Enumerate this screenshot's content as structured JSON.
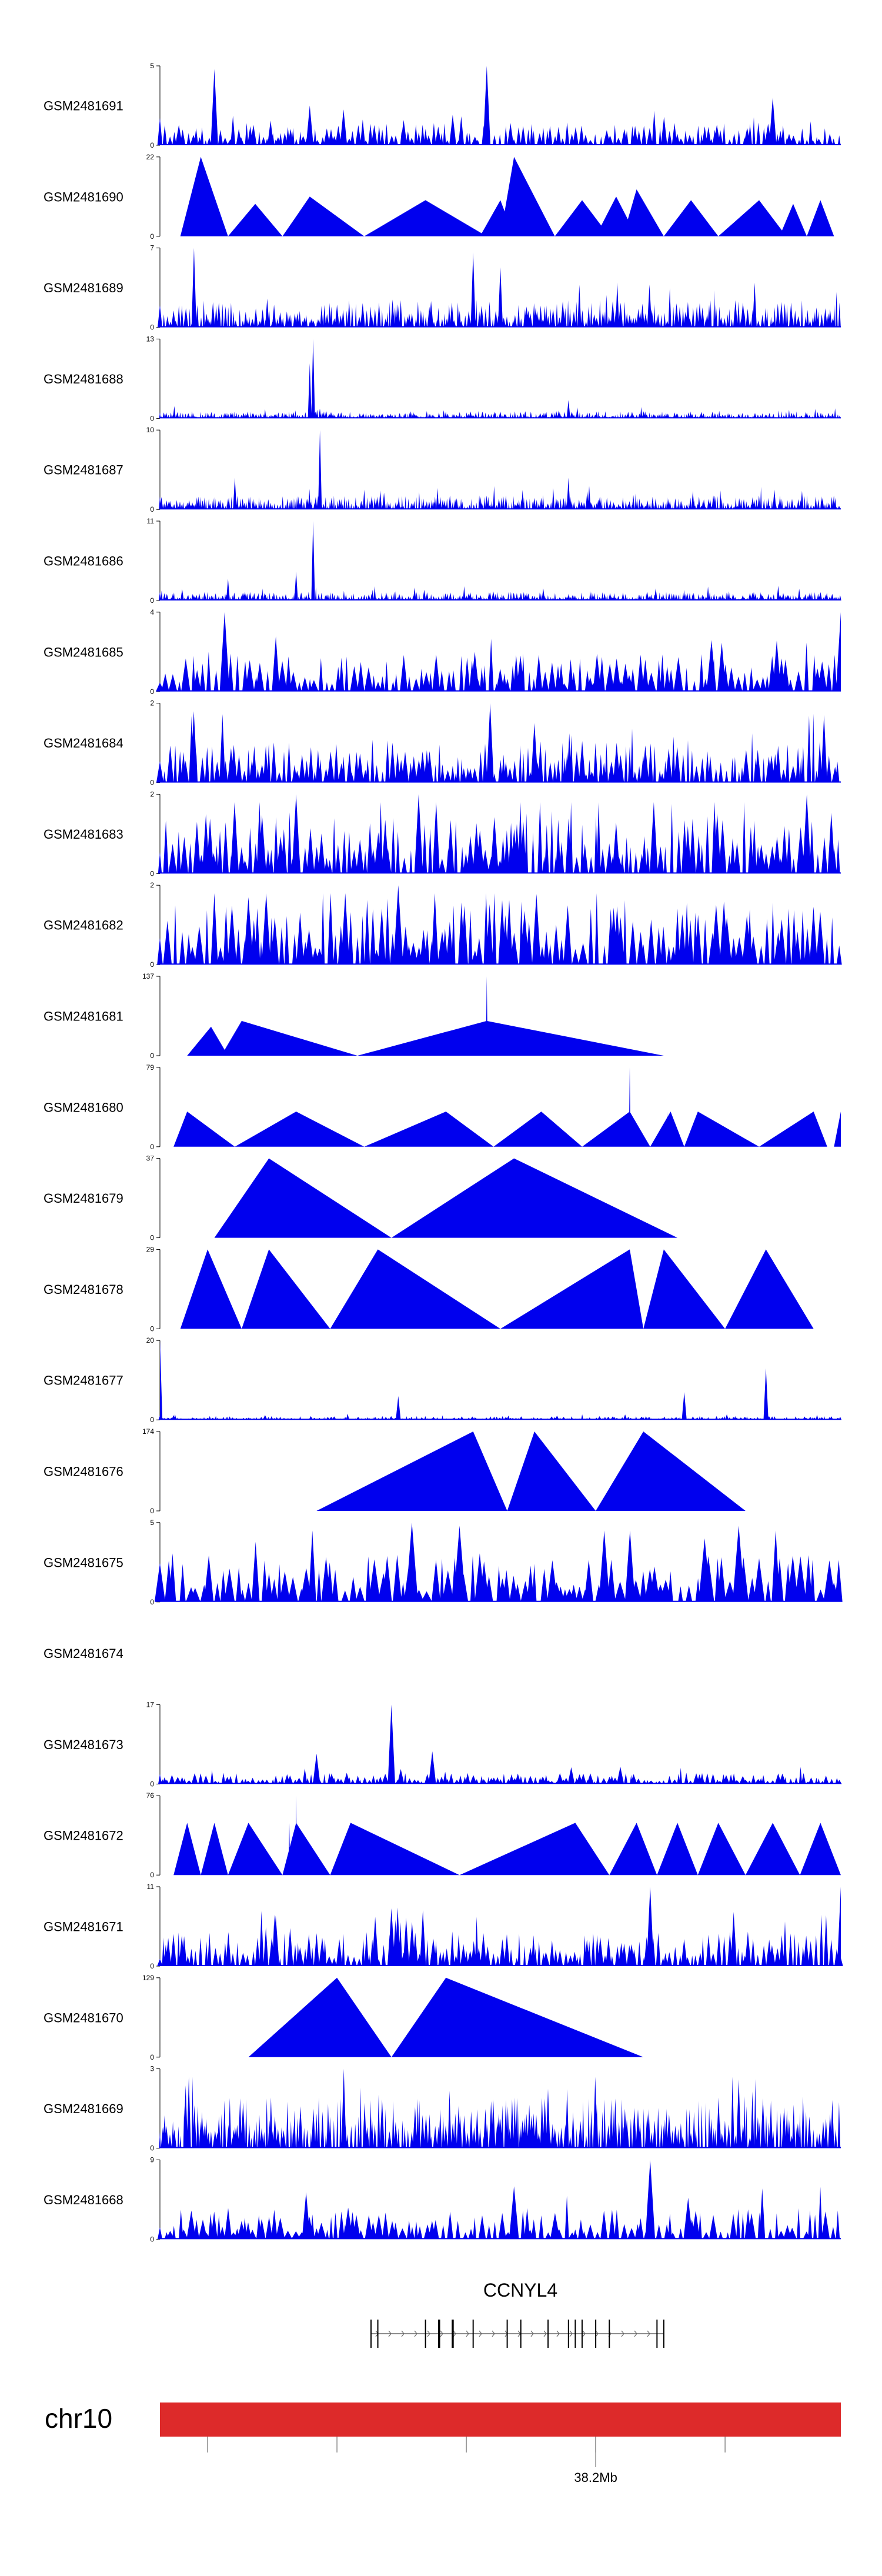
{
  "chart_data": {
    "type": "area",
    "title": "",
    "fill_color": "#0000ee",
    "tracks": [
      {
        "name": "GSM2481691",
        "ymax": 5,
        "peaks": [
          [
            0.08,
            4.8
          ],
          [
            0.48,
            5.0
          ],
          [
            0.22,
            2.5
          ],
          [
            0.9,
            3.0
          ]
        ],
        "spacing": 0.006,
        "base": 1.2
      },
      {
        "name": "GSM2481690",
        "ymax": 22,
        "segments": [
          [
            0.03,
            0.06,
            0.1,
            22
          ],
          [
            0.1,
            0.14,
            0.18,
            9
          ],
          [
            0.18,
            0.22,
            0.3,
            11
          ],
          [
            0.3,
            0.39,
            0.48,
            10
          ],
          [
            0.47,
            0.5,
            0.52,
            10
          ],
          [
            0.5,
            0.52,
            0.58,
            22
          ],
          [
            0.58,
            0.62,
            0.66,
            10
          ],
          [
            0.64,
            0.67,
            0.7,
            11
          ],
          [
            0.68,
            0.7,
            0.74,
            13
          ],
          [
            0.74,
            0.78,
            0.82,
            10
          ],
          [
            0.82,
            0.88,
            0.92,
            10
          ],
          [
            0.91,
            0.93,
            0.95,
            9
          ],
          [
            0.95,
            0.97,
            0.99,
            10
          ]
        ]
      },
      {
        "name": "GSM2481689",
        "ymax": 7,
        "peaks": [
          [
            0.05,
            7.0
          ],
          [
            0.46,
            6.6
          ],
          [
            0.5,
            5.3
          ]
        ],
        "spacing": 0.004,
        "base": 2.0
      },
      {
        "name": "GSM2481688",
        "ymax": 13,
        "peaks": [
          [
            0.225,
            13.0
          ],
          [
            0.22,
            9.0
          ],
          [
            0.6,
            3.0
          ]
        ],
        "spacing": 0.003,
        "base": 1.0
      },
      {
        "name": "GSM2481687",
        "ymax": 10,
        "peaks": [
          [
            0.235,
            10.0
          ],
          [
            0.11,
            4.0
          ],
          [
            0.6,
            4.0
          ]
        ],
        "spacing": 0.003,
        "base": 1.5
      },
      {
        "name": "GSM2481686",
        "ymax": 11,
        "peaks": [
          [
            0.225,
            11.0
          ],
          [
            0.2,
            4.0
          ],
          [
            0.1,
            3.0
          ]
        ],
        "spacing": 0.003,
        "base": 1.0
      },
      {
        "name": "GSM2481685",
        "ymax": 4,
        "peaks": [
          [
            0.095,
            4.0
          ],
          [
            1.0,
            4.0
          ],
          [
            0.81,
            2.6
          ]
        ],
        "spacing": 0.008,
        "base": 1.6
      },
      {
        "name": "GSM2481684",
        "ymax": 2,
        "peaks": [
          [
            0.485,
            2.0
          ],
          [
            0.55,
            1.5
          ]
        ],
        "spacing": 0.006,
        "base": 0.9
      },
      {
        "name": "GSM2481683",
        "ymax": 2,
        "peaks": [
          [
            0.2,
            2.0
          ],
          [
            0.38,
            2.0
          ],
          [
            0.95,
            2.0
          ]
        ],
        "spacing": 0.007,
        "base": 1.3
      },
      {
        "name": "GSM2481682",
        "ymax": 2,
        "peaks": [
          [
            0.35,
            2.0
          ],
          [
            0.13,
            1.7
          ]
        ],
        "spacing": 0.008,
        "base": 1.4
      },
      {
        "name": "GSM2481681",
        "ymax": 137,
        "segments": [
          [
            0.04,
            0.075,
            0.1,
            50
          ],
          [
            0.09,
            0.12,
            0.29,
            60
          ],
          [
            0.29,
            0.48,
            0.74,
            60
          ]
        ],
        "spikes": [
          [
            0.48,
            137
          ]
        ]
      },
      {
        "name": "GSM2481680",
        "ymax": 79,
        "segments": [
          [
            0.02,
            0.04,
            0.11,
            35
          ],
          [
            0.11,
            0.2,
            0.3,
            35
          ],
          [
            0.3,
            0.42,
            0.49,
            35
          ],
          [
            0.49,
            0.56,
            0.62,
            35
          ],
          [
            0.62,
            0.69,
            0.72,
            35
          ],
          [
            0.72,
            0.75,
            0.77,
            35
          ],
          [
            0.77,
            0.79,
            0.88,
            35
          ],
          [
            0.88,
            0.96,
            0.98,
            35
          ],
          [
            0.99,
            1.0,
            1.0,
            35
          ]
        ],
        "spikes": [
          [
            0.69,
            79
          ],
          [
            0.745,
            35
          ]
        ]
      },
      {
        "name": "GSM2481679",
        "ymax": 37,
        "segments": [
          [
            0.08,
            0.16,
            0.34,
            37
          ],
          [
            0.34,
            0.52,
            0.76,
            37
          ]
        ]
      },
      {
        "name": "GSM2481678",
        "ymax": 29,
        "segments": [
          [
            0.03,
            0.07,
            0.12,
            29
          ],
          [
            0.12,
            0.16,
            0.25,
            29
          ],
          [
            0.25,
            0.32,
            0.5,
            29
          ],
          [
            0.5,
            0.69,
            0.71,
            29
          ],
          [
            0.71,
            0.74,
            0.83,
            29
          ],
          [
            0.83,
            0.89,
            0.96,
            29
          ]
        ]
      },
      {
        "name": "GSM2481677",
        "ymax": 20,
        "peaks": [
          [
            0.0,
            20.0
          ],
          [
            0.89,
            13.0
          ],
          [
            0.35,
            6.0
          ],
          [
            0.77,
            7.0
          ]
        ],
        "spacing": 0.004,
        "base": 0.8
      },
      {
        "name": "GSM2481676",
        "ymax": 174,
        "segments": [
          [
            0.23,
            0.46,
            0.51,
            174
          ],
          [
            0.51,
            0.55,
            0.64,
            174
          ],
          [
            0.64,
            0.71,
            0.86,
            174
          ]
        ]
      },
      {
        "name": "GSM2481675",
        "ymax": 5,
        "peaks": [
          [
            0.37,
            5.0
          ],
          [
            0.44,
            4.8
          ],
          [
            0.85,
            4.8
          ],
          [
            0.8,
            4.0
          ]
        ],
        "spacing": 0.01,
        "base": 2.6
      },
      {
        "name": "GSM2481674",
        "ymax": 0,
        "empty": true
      },
      {
        "name": "GSM2481673",
        "ymax": 17,
        "peaks": [
          [
            0.34,
            17.0
          ],
          [
            0.23,
            6.5
          ],
          [
            0.4,
            7.0
          ]
        ],
        "spacing": 0.006,
        "base": 2.0
      },
      {
        "name": "GSM2481672",
        "ymax": 76,
        "segments": [
          [
            0.02,
            0.04,
            0.06,
            50
          ],
          [
            0.06,
            0.08,
            0.1,
            50
          ],
          [
            0.1,
            0.13,
            0.18,
            50
          ],
          [
            0.18,
            0.2,
            0.25,
            50
          ],
          [
            0.25,
            0.28,
            0.44,
            50
          ],
          [
            0.44,
            0.61,
            0.66,
            50
          ],
          [
            0.66,
            0.7,
            0.73,
            50
          ],
          [
            0.73,
            0.76,
            0.79,
            50
          ],
          [
            0.79,
            0.82,
            0.86,
            50
          ],
          [
            0.86,
            0.9,
            0.94,
            50
          ],
          [
            0.94,
            0.97,
            1.0,
            50
          ]
        ],
        "spikes": [
          [
            0.2,
            76
          ],
          [
            0.19,
            50
          ]
        ]
      },
      {
        "name": "GSM2481671",
        "ymax": 11,
        "peaks": [
          [
            0.72,
            11.0
          ],
          [
            1.0,
            11.0
          ],
          [
            0.17,
            7.0
          ],
          [
            0.34,
            8.0
          ]
        ],
        "spacing": 0.006,
        "base": 4.0
      },
      {
        "name": "GSM2481670",
        "ymax": 129,
        "segments": [
          [
            0.13,
            0.26,
            0.34,
            129
          ],
          [
            0.34,
            0.42,
            0.71,
            129
          ]
        ],
        "spikes": [
          [
            0.26,
            129
          ]
        ]
      },
      {
        "name": "GSM2481669",
        "ymax": 3,
        "peaks": [
          [
            0.27,
            3.0
          ],
          [
            0.85,
            2.6
          ]
        ],
        "spacing": 0.004,
        "base": 1.6
      },
      {
        "name": "GSM2481668",
        "ymax": 9,
        "peaks": [
          [
            0.72,
            9.0
          ],
          [
            0.52,
            6.0
          ]
        ],
        "spacing": 0.008,
        "base": 3.0
      }
    ],
    "gene": {
      "name": "CCNYL4",
      "strand": "+",
      "exons": [
        0.31,
        0.32,
        0.39,
        0.41,
        0.43,
        0.46,
        0.51,
        0.53,
        0.57,
        0.6,
        0.61,
        0.62,
        0.64,
        0.66,
        0.73,
        0.74
      ]
    },
    "chromosome": {
      "name": "chr10",
      "color": "#dd2a2a",
      "ticks": [
        0.07,
        0.26,
        0.45,
        0.64,
        0.83
      ],
      "tick_label": "38.2Mb",
      "labeled_tick": 0.64
    }
  }
}
